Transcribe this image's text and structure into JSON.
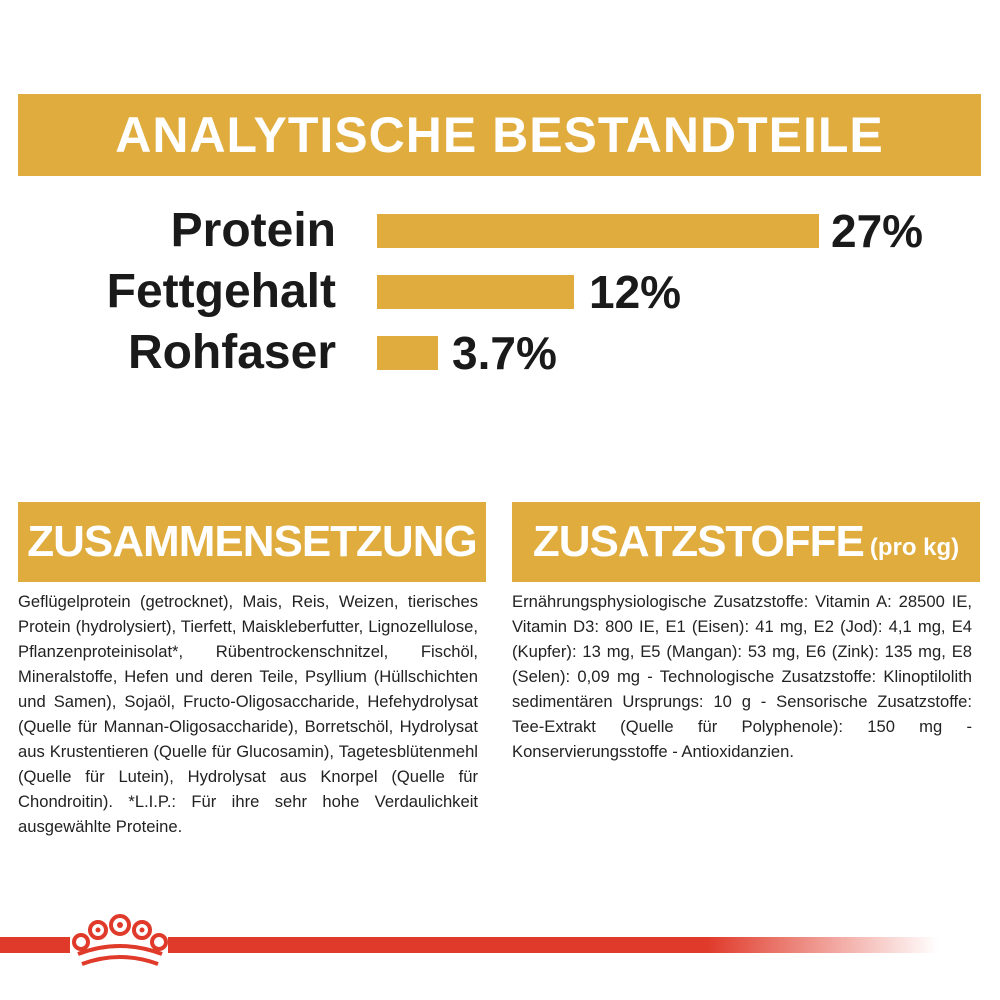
{
  "analytics": {
    "title": "ANALYTISCHE BESTANDTEILE",
    "rows": [
      {
        "label": "Protein",
        "value": "27%",
        "percent": 27
      },
      {
        "label": "Fettgehalt",
        "value": "12%",
        "percent": 12
      },
      {
        "label": "Rohfaser",
        "value": "3.7%",
        "percent": 3.7
      }
    ]
  },
  "composition": {
    "title": "ZUSAMMENSETZUNG",
    "text": "Geflügelprotein (getrocknet), Mais, Reis, Weizen, tierisches Protein (hydrolysiert), Tierfett, Maiskleberfutter, Lignozellulose, Pflanzenproteinisolat*, Rübentrockenschnitzel, Fischöl, Mineralstoffe, Hefen und deren Teile, Psyllium (Hüllschichten und Samen), Sojaöl, Fructo-Oligosaccharide, Hefehydrolysat (Quelle für Mannan-Oligosaccharide), Borretschöl, Hydrolysat aus Krustentieren (Quelle für Glucosamin), Tagetesblütenmehl (Quelle für Lutein), Hydrolysat aus Knorpel (Quelle für Chondroitin). *L.I.P.: Für ihre sehr hohe Verdaulichkeit ausgewählte Proteine."
  },
  "additives": {
    "title": "ZUSATZSTOFFE",
    "subtitle": "(pro kg)",
    "text": "Ernährungsphysiologische Zusatzstoffe: Vitamin A: 28500 IE, Vitamin D3: 800 IE, E1 (Eisen): 41 mg, E2 (Jod): 4,1 mg, E4 (Kupfer): 13 mg, E5 (Mangan): 53 mg, E6 (Zink): 135 mg, E8 (Selen): 0,09 mg - Technologische Zusatzstoffe: Klinoptilolith sedimentären Ursprungs: 10 g - Sensorische Zusatzstoffe: Tee-Extrakt (Quelle für Polyphenole): 150 mg - Konservierungsstoffe - Antioxidanzien."
  },
  "colors": {
    "accent": "#e0ac3e",
    "brand_red": "#e03a2a",
    "text": "#1a1a1a"
  },
  "logo": {
    "icon": "crown-icon"
  }
}
